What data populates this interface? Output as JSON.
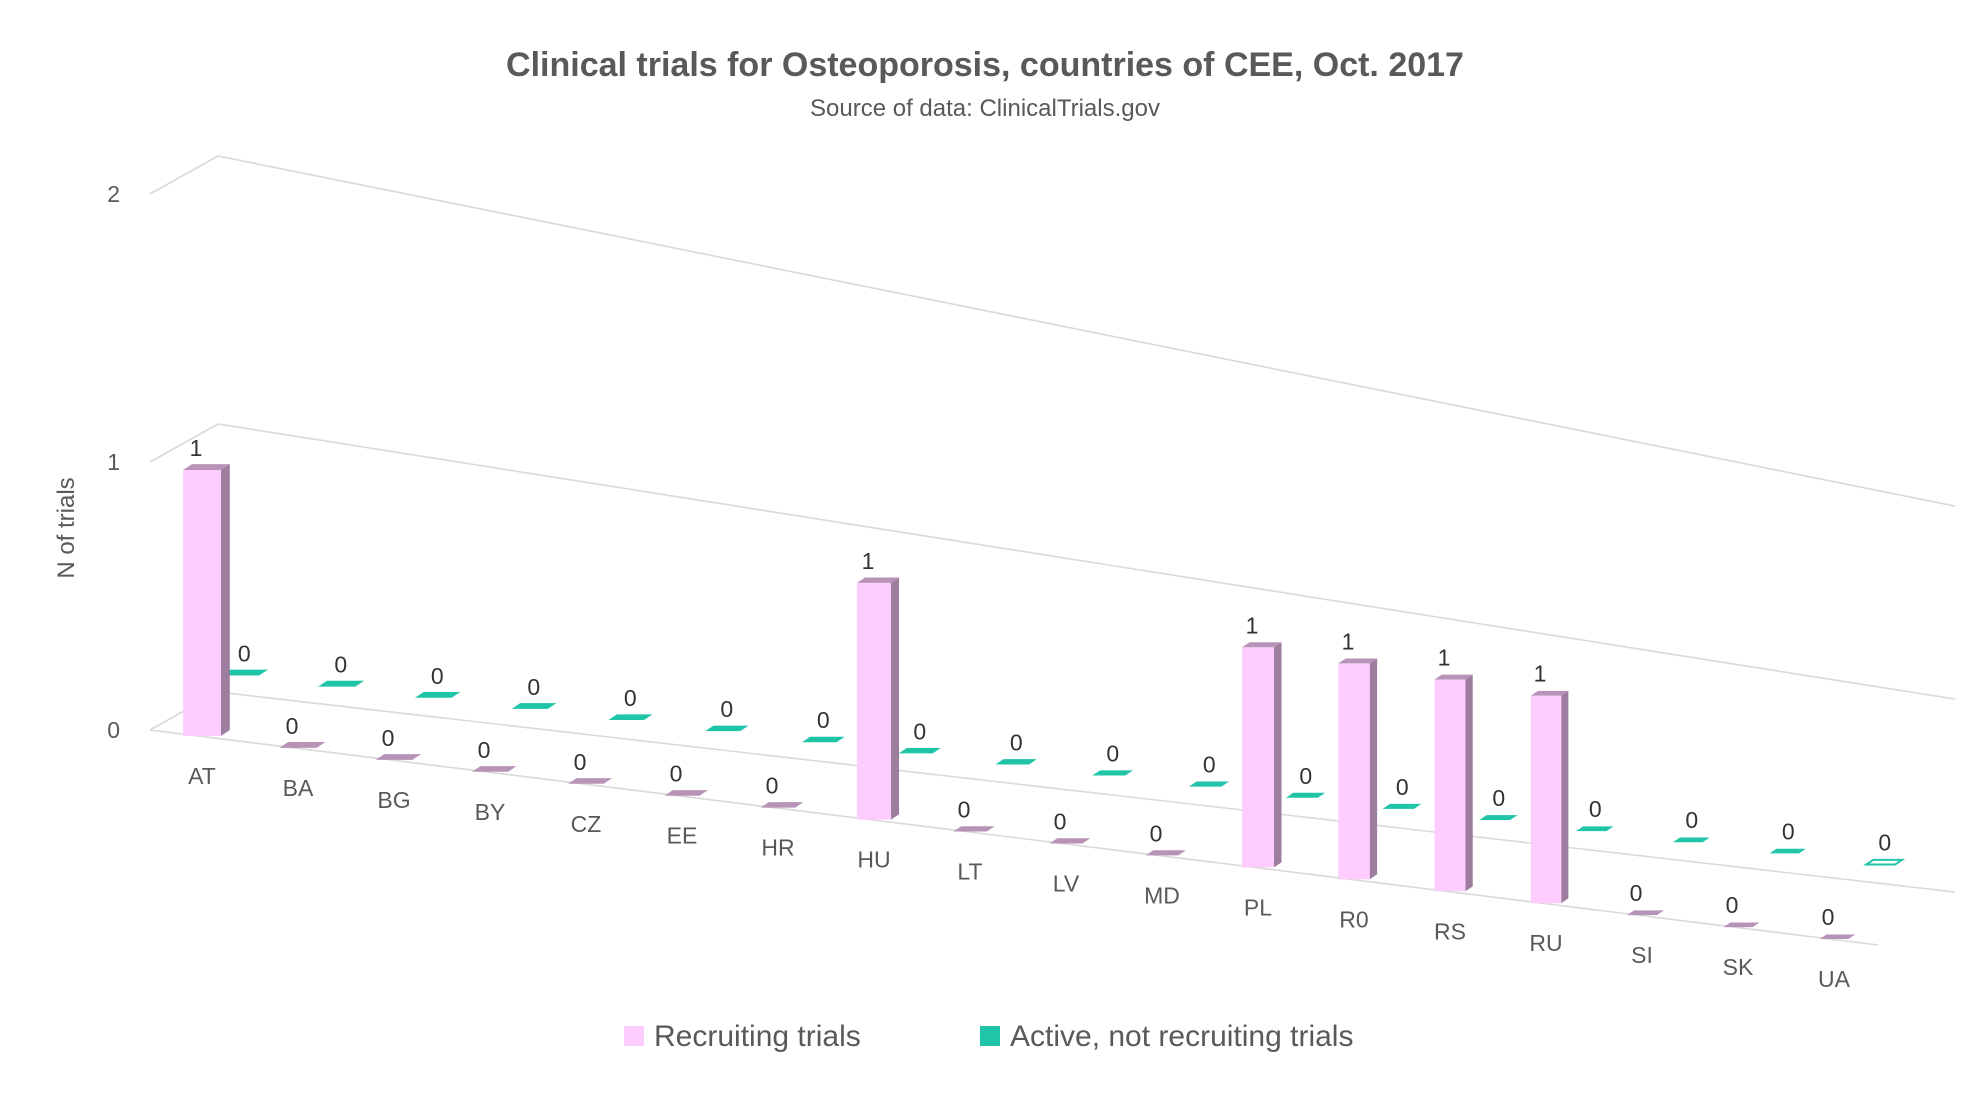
{
  "chart_data": {
    "type": "bar",
    "title": "Clinical trials for Osteoporosis, countries of CEE, Oct. 2017",
    "subtitle": "Source of data: ClinicalTrials.gov",
    "ylabel": "N of trials",
    "xlabel": "",
    "ylim": [
      0,
      2
    ],
    "yticks": [
      0,
      1,
      2
    ],
    "grid": true,
    "legend_position": "bottom",
    "categories": [
      "AT",
      "BA",
      "BG",
      "BY",
      "CZ",
      "EE",
      "HR",
      "HU",
      "LT",
      "LV",
      "MD",
      "PL",
      "R0",
      "RS",
      "RU",
      "SI",
      "SK",
      "UA"
    ],
    "series": [
      {
        "name": "Recruiting trials",
        "color": "#ffccff",
        "values": [
          1,
          0,
          0,
          0,
          0,
          0,
          0,
          1,
          0,
          0,
          0,
          1,
          1,
          1,
          1,
          0,
          0,
          0
        ],
        "labels": [
          "1",
          "0",
          "0",
          "0",
          "0",
          "0",
          "0",
          "1",
          "0",
          "0",
          "0",
          "1",
          "1",
          "1",
          "1",
          "0",
          "0",
          "0"
        ]
      },
      {
        "name": "Active, not recruiting trials",
        "color": "#20c5a8",
        "values": [
          0,
          0,
          0,
          0,
          0,
          0,
          0,
          0,
          0,
          0,
          0,
          0,
          0,
          0,
          0,
          0,
          0,
          0
        ],
        "labels": [
          "0",
          "0",
          "0",
          "0",
          "0",
          "0",
          "0",
          "0",
          "0",
          "0",
          "0",
          "0",
          "0",
          "0",
          "0",
          "0",
          "0",
          "0"
        ]
      }
    ],
    "highlight_color": "#ff0000",
    "highlight_category": "UA"
  }
}
